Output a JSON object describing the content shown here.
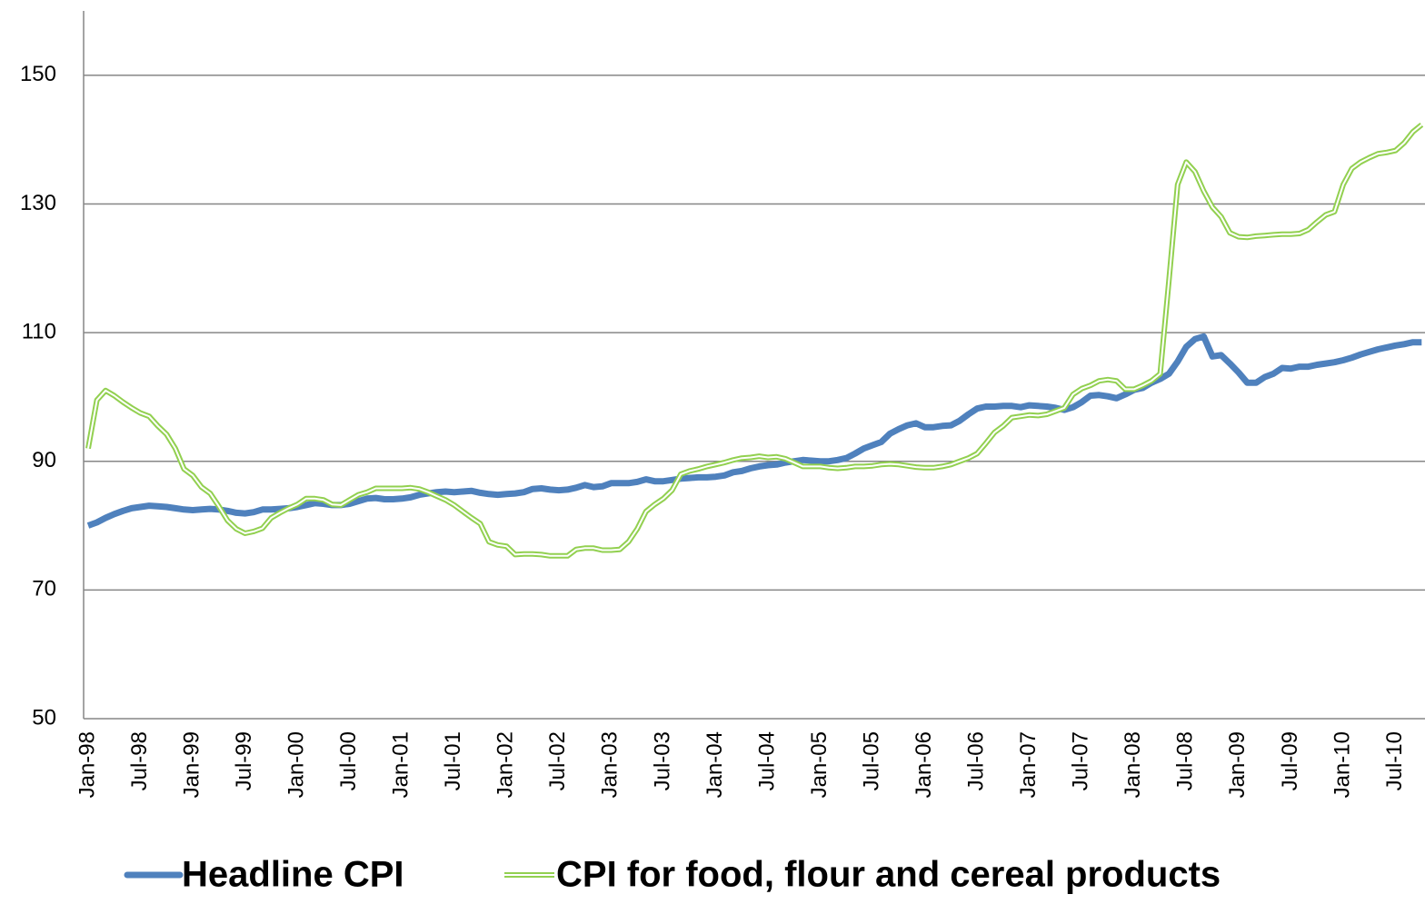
{
  "chart_data": {
    "type": "line",
    "categories": [
      "Jan-98",
      null,
      null,
      null,
      null,
      null,
      "Jul-98",
      null,
      null,
      null,
      null,
      null,
      "Jan-99",
      null,
      null,
      null,
      null,
      null,
      "Jul-99",
      null,
      null,
      null,
      null,
      null,
      "Jan-00",
      null,
      null,
      null,
      null,
      null,
      "Jul-00",
      null,
      null,
      null,
      null,
      null,
      "Jan-01",
      null,
      null,
      null,
      null,
      null,
      "Jul-01",
      null,
      null,
      null,
      null,
      null,
      "Jan-02",
      null,
      null,
      null,
      null,
      null,
      "Jul-02",
      null,
      null,
      null,
      null,
      null,
      "Jan-03",
      null,
      null,
      null,
      null,
      null,
      "Jul-03",
      null,
      null,
      null,
      null,
      null,
      "Jan-04",
      null,
      null,
      null,
      null,
      null,
      "Jul-04",
      null,
      null,
      null,
      null,
      null,
      "Jan-05",
      null,
      null,
      null,
      null,
      null,
      "Jul-05",
      null,
      null,
      null,
      null,
      null,
      "Jan-06",
      null,
      null,
      null,
      null,
      null,
      "Jul-06",
      null,
      null,
      null,
      null,
      null,
      "Jan-07",
      null,
      null,
      null,
      null,
      null,
      "Jul-07",
      null,
      null,
      null,
      null,
      null,
      "Jan-08",
      null,
      null,
      null,
      null,
      null,
      "Jul-08",
      null,
      null,
      null,
      null,
      null,
      "Jan-09",
      null,
      null,
      null,
      null,
      null,
      "Jul-09",
      null,
      null,
      null,
      null,
      null,
      "Jan-10",
      null,
      null,
      null,
      null,
      null,
      "Jul-10",
      null,
      null,
      null
    ],
    "series": [
      {
        "name": "Headline CPI",
        "color": "#4f81bd",
        "values": [
          80,
          80.5,
          81.2,
          81.8,
          82.3,
          82.7,
          82.9,
          83.1,
          83,
          82.9,
          82.7,
          82.5,
          82.4,
          82.5,
          82.6,
          82.5,
          82.3,
          82,
          81.9,
          82.1,
          82.5,
          82.5,
          82.6,
          82.7,
          82.9,
          83.2,
          83.5,
          83.4,
          83.2,
          83.2,
          83.4,
          83.8,
          84.2,
          84.3,
          84.1,
          84.1,
          84.2,
          84.4,
          84.8,
          85,
          85.2,
          85.3,
          85.2,
          85.3,
          85.4,
          85.1,
          84.9,
          84.8,
          84.9,
          85,
          85.2,
          85.7,
          85.8,
          85.6,
          85.5,
          85.6,
          85.9,
          86.3,
          86,
          86.1,
          86.6,
          86.6,
          86.6,
          86.8,
          87.2,
          86.9,
          86.9,
          87.1,
          87.3,
          87.4,
          87.5,
          87.5,
          87.6,
          87.8,
          88.3,
          88.5,
          88.9,
          89.2,
          89.4,
          89.5,
          89.8,
          90,
          90.2,
          90.1,
          90,
          90,
          90.2,
          90.5,
          91.2,
          92,
          92.5,
          93,
          94.3,
          95,
          95.6,
          95.9,
          95.3,
          95.3,
          95.5,
          95.6,
          96.3,
          97.3,
          98.2,
          98.5,
          98.5,
          98.6,
          98.6,
          98.4,
          98.7,
          98.6,
          98.5,
          98.3,
          98,
          98.4,
          99.2,
          100.2,
          100.3,
          100.1,
          99.8,
          100.4,
          101.1,
          101.4,
          102.2,
          102.8,
          103.6,
          105.5,
          107.8,
          109,
          109.4,
          106.3,
          106.5,
          105.2,
          103.8,
          102.2,
          102.2,
          103.1,
          103.6,
          104.5,
          104.4,
          104.7,
          104.7,
          105,
          105.2,
          105.4,
          105.7,
          106.1,
          106.6,
          107,
          107.4,
          107.7,
          108,
          108.2,
          108.5,
          108.5
        ]
      },
      {
        "name": "CPI for food, flour and cereal products",
        "color": "#92d050",
        "values": [
          92,
          99.5,
          101,
          100.2,
          99.2,
          98.3,
          97.5,
          97,
          95.5,
          94.2,
          92,
          88.8,
          87.8,
          86,
          85,
          83,
          80.8,
          79.5,
          78.8,
          79.1,
          79.6,
          81.2,
          82,
          82.7,
          83.3,
          84.2,
          84.2,
          84,
          83.3,
          83.2,
          84,
          84.8,
          85.2,
          85.8,
          85.8,
          85.8,
          85.8,
          85.9,
          85.7,
          85.2,
          84.6,
          84,
          83.2,
          82.2,
          81.2,
          80.3,
          77.5,
          77,
          76.8,
          75.5,
          75.6,
          75.6,
          75.5,
          75.3,
          75.3,
          75.3,
          76.3,
          76.5,
          76.5,
          76.2,
          76.2,
          76.3,
          77.5,
          79.5,
          82.2,
          83.3,
          84.2,
          85.5,
          88,
          88.5,
          88.8,
          89.2,
          89.5,
          89.8,
          90.2,
          90.5,
          90.6,
          90.8,
          90.6,
          90.7,
          90.4,
          89.8,
          89.2,
          89.2,
          89.2,
          89,
          88.9,
          89,
          89.2,
          89.2,
          89.3,
          89.5,
          89.6,
          89.5,
          89.3,
          89.1,
          89,
          89,
          89.2,
          89.5,
          90,
          90.5,
          91.2,
          92.8,
          94.5,
          95.5,
          96.8,
          97,
          97.2,
          97.1,
          97.3,
          97.8,
          98.3,
          100.4,
          101.3,
          101.8,
          102.5,
          102.7,
          102.5,
          101.2,
          101.2,
          101.8,
          102.5,
          103.6,
          118,
          133,
          136.5,
          135,
          132,
          129.5,
          128,
          125.5,
          124.9,
          124.8,
          125,
          125.1,
          125.2,
          125.3,
          125.3,
          125.4,
          126,
          127.2,
          128.3,
          128.8,
          133,
          135.5,
          136.5,
          137.2,
          137.8,
          138,
          138.3,
          139.5,
          141.2,
          142.3
        ]
      }
    ],
    "ylim": [
      50,
      160
    ],
    "yticks": [
      50,
      70,
      90,
      110,
      130,
      150
    ],
    "grid": true,
    "legend": "bottom"
  }
}
